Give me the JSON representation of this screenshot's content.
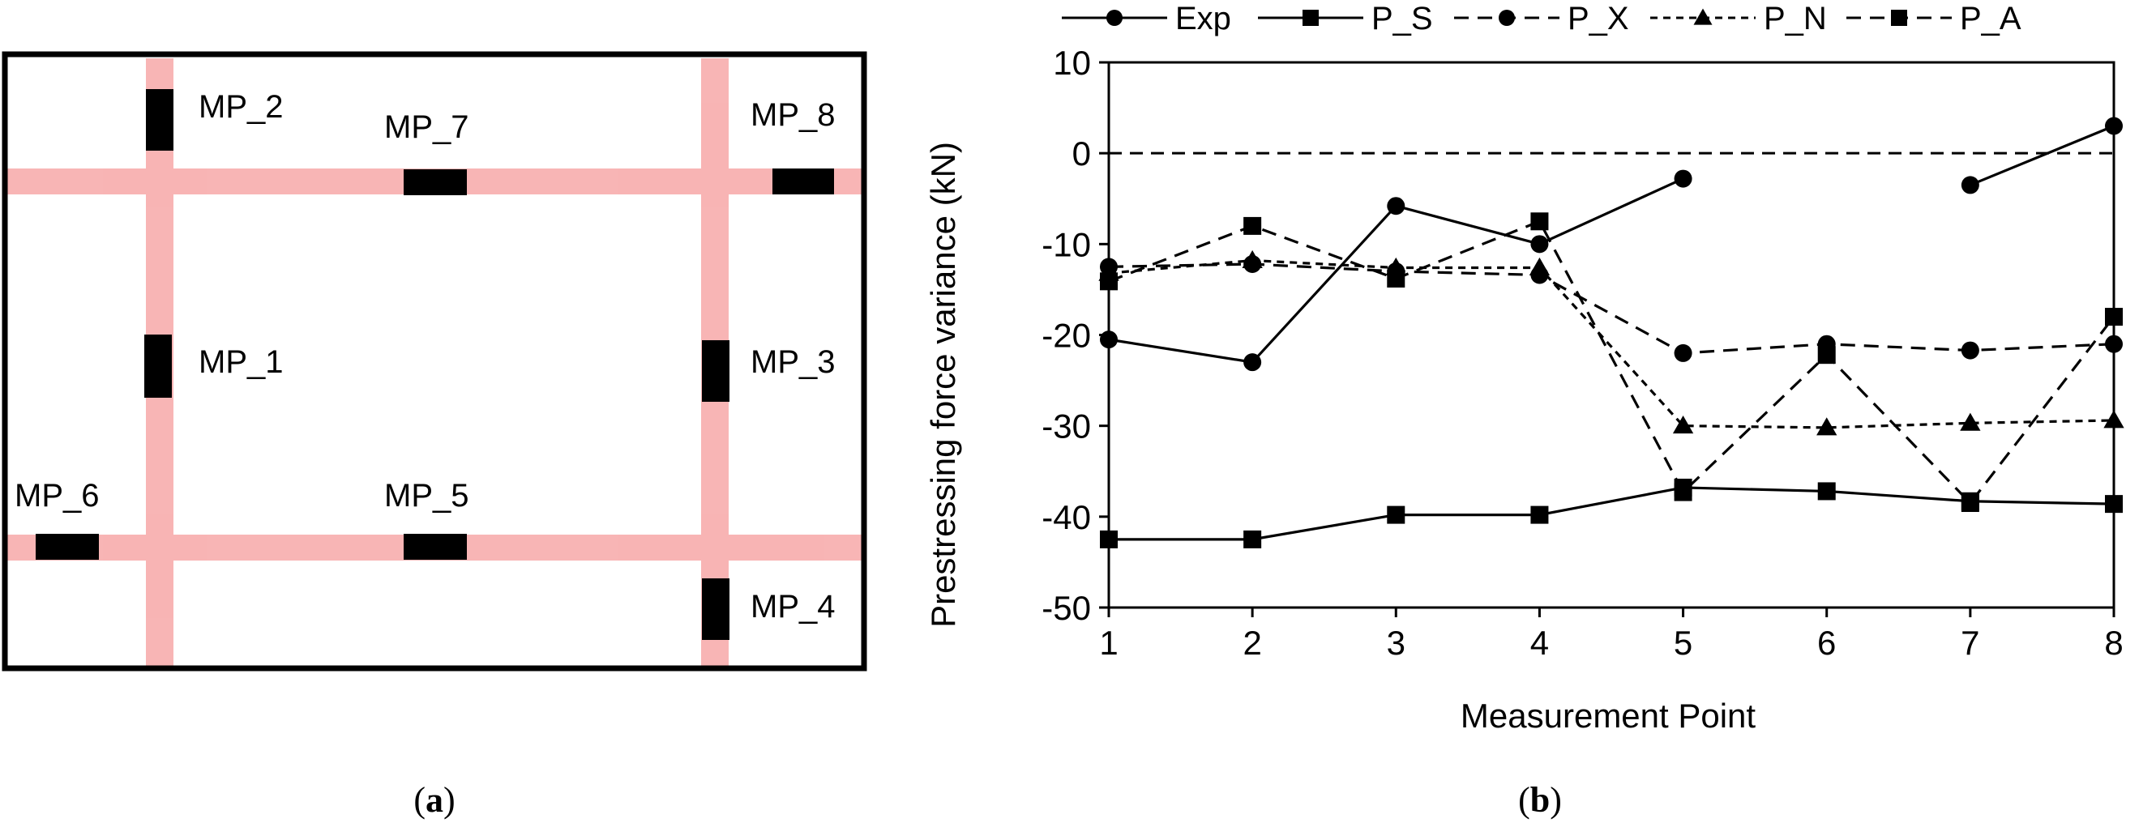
{
  "panel_a": {
    "caption": "a",
    "labels": {
      "mp1": "MP_1",
      "mp2": "MP_2",
      "mp3": "MP_3",
      "mp4": "MP_4",
      "mp5": "MP_5",
      "mp6": "MP_6",
      "mp7": "MP_7",
      "mp8": "MP_8"
    },
    "colors": {
      "tendon": "#f7a8a8",
      "frame": "#000000",
      "gauge": "#000000"
    }
  },
  "chart_data": {
    "type": "line",
    "caption": "b",
    "title": "",
    "xlabel": "Measurement Point",
    "ylabel": "Prestressing force variance (kN)",
    "categories": [
      1,
      2,
      3,
      4,
      5,
      6,
      7,
      8
    ],
    "xlim": [
      1,
      8
    ],
    "ylim": [
      -50,
      10
    ],
    "yticks": [
      -50,
      -40,
      -30,
      -20,
      -10,
      0,
      10
    ],
    "grid": false,
    "legend_position": "top",
    "reference_line": {
      "y": 0,
      "style": "dashed"
    },
    "series": [
      {
        "name": "Exp",
        "marker": "circle",
        "line": "solid",
        "values": [
          -20.5,
          -23,
          -5.8,
          -10,
          -2.8,
          null,
          -3.5,
          3
        ]
      },
      {
        "name": "P_S",
        "marker": "square",
        "line": "solid",
        "values": [
          -42.5,
          -42.5,
          -39.8,
          -39.8,
          -36.8,
          -37.2,
          -38.3,
          -38.6
        ]
      },
      {
        "name": "P_X",
        "marker": "circle",
        "line": "dashed",
        "values": [
          -12.5,
          -12.2,
          -13,
          -13.4,
          -22,
          -21,
          -21.7,
          -21
        ]
      },
      {
        "name": "P_N",
        "marker": "triangle",
        "line": "dotted",
        "values": [
          -13.2,
          -11.8,
          -12.6,
          -12.6,
          -30,
          -30.2,
          -29.7,
          -29.4
        ]
      },
      {
        "name": "P_A",
        "marker": "square",
        "line": "dashed",
        "values": [
          -14.1,
          -8,
          -13.8,
          -7.5,
          -37.3,
          -22.2,
          -38.5,
          -18
        ]
      }
    ]
  }
}
